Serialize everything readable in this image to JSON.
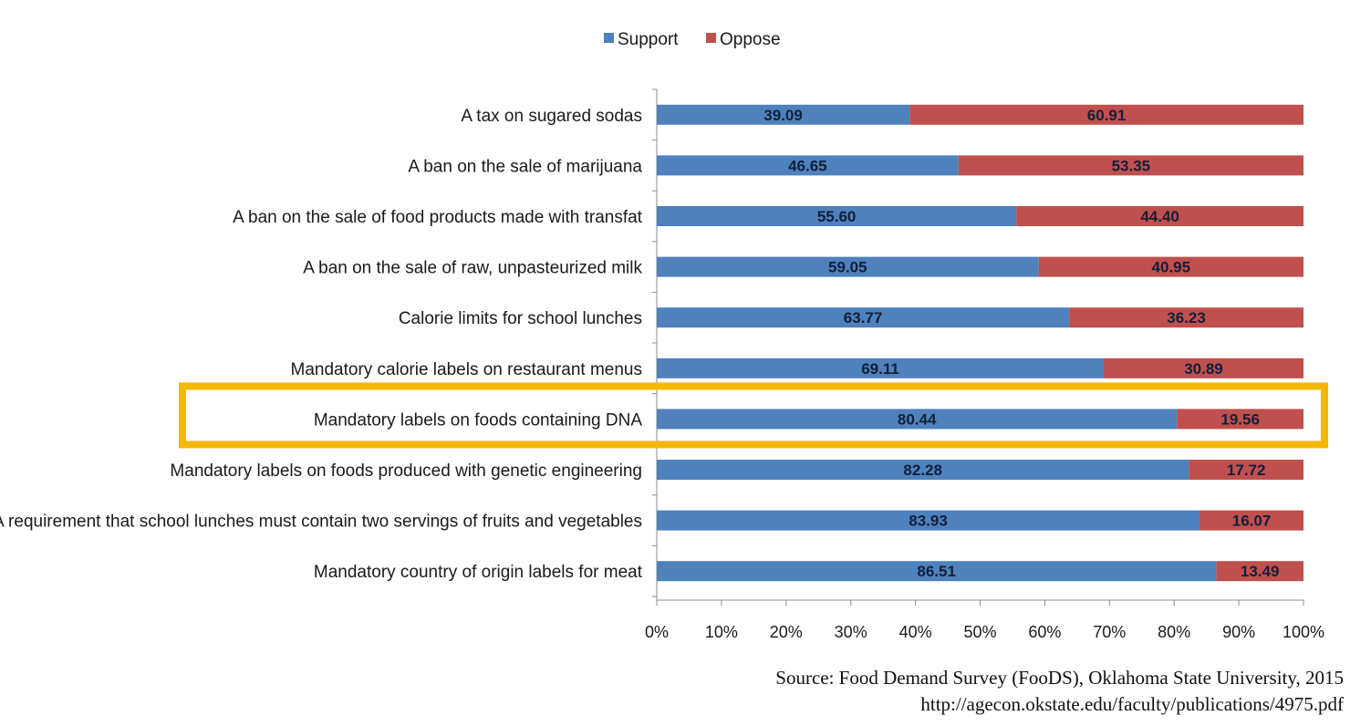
{
  "chart_data": {
    "type": "bar",
    "orientation": "horizontal",
    "stacked": true,
    "title": "",
    "xlabel": "",
    "ylabel": "",
    "xlim": [
      0,
      100
    ],
    "x_ticks": [
      "0%",
      "10%",
      "20%",
      "30%",
      "40%",
      "50%",
      "60%",
      "70%",
      "80%",
      "90%",
      "100%"
    ],
    "grid": false,
    "legend_position": "top",
    "categories": [
      "A tax on sugared sodas",
      "A ban on the sale of marijuana",
      "A ban on the sale of food products made with transfat",
      "A ban on the sale of raw, unpasteurized milk",
      "Calorie limits for school lunches",
      "Mandatory calorie labels on restaurant menus",
      "Mandatory labels on foods containing DNA",
      "Mandatory labels on foods produced with genetic engineering",
      "A requirement that school lunches must contain two servings of fruits and vegetables",
      "Mandatory country of origin labels for meat"
    ],
    "series": [
      {
        "name": "Support",
        "color": "#4f81bd",
        "values": [
          39.09,
          46.65,
          55.6,
          59.05,
          63.77,
          69.11,
          80.44,
          82.28,
          83.93,
          86.51
        ],
        "labels": [
          "39.09",
          "46.65",
          "55.60",
          "59.05",
          "63.77",
          "69.11",
          "80.44",
          "82.28",
          "83.93",
          "86.51"
        ]
      },
      {
        "name": "Oppose",
        "color": "#c0504d",
        "values": [
          60.91,
          53.35,
          44.4,
          40.95,
          36.23,
          30.89,
          19.56,
          17.72,
          16.07,
          13.49
        ],
        "labels": [
          "60.91",
          "53.35",
          "44.40",
          "40.95",
          "36.23",
          "30.89",
          "19.56",
          "17.72",
          "16.07",
          "13.49"
        ]
      }
    ],
    "highlight": {
      "category": "Mandatory labels on foods containing DNA",
      "color": "#f5b800"
    }
  },
  "source": {
    "text": "Source: Food Demand Survey (FooDS), Oklahoma State University, 2015",
    "url": "http://agecon.okstate.edu/faculty/publications/4975.pdf"
  }
}
